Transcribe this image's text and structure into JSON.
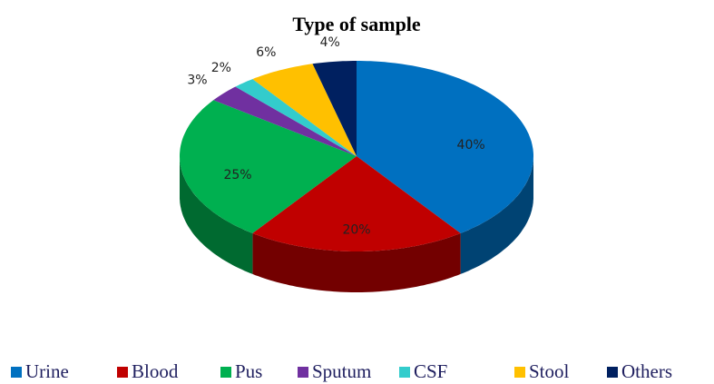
{
  "chart_data": {
    "type": "pie3d",
    "title": "Type of sample",
    "categories": [
      "Urine",
      "Blood",
      "Pus",
      "Sputum",
      "CSF",
      "Stool",
      "Others"
    ],
    "values": [
      40,
      20,
      25,
      3,
      2,
      6,
      4
    ],
    "value_labels": [
      "40%",
      "20%",
      "25%",
      "3%",
      "2%",
      "6%",
      "4%"
    ],
    "colors": [
      "#0070c0",
      "#c00000",
      "#00b050",
      "#7030a0",
      "#33cccc",
      "#ffc000",
      "#002060"
    ],
    "legend": "bottom"
  }
}
